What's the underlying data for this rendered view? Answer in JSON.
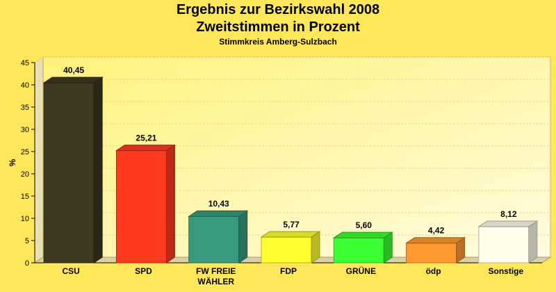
{
  "chart_data": {
    "type": "bar",
    "title": "Ergebnis zur Bezirkswahl 2008",
    "title2": "Zweitstimmen in Prozent",
    "subtitle": "Stimmkreis Amberg-Sulzbach",
    "ylabel": "%",
    "xlabel": "",
    "ylim": [
      0,
      45
    ],
    "yticks": [
      0,
      5,
      10,
      15,
      20,
      25,
      30,
      35,
      40,
      45
    ],
    "grid": true,
    "categories": [
      "CSU",
      "SPD",
      "FW FREIE WÄHLER",
      "FDP",
      "GRÜNE",
      "ödp",
      "Sonstige"
    ],
    "category_lines": [
      [
        "CSU"
      ],
      [
        "SPD"
      ],
      [
        "FW FREIE",
        "WÄHLER"
      ],
      [
        "FDP"
      ],
      [
        "GRÜNE"
      ],
      [
        "ödp"
      ],
      [
        "Sonstige"
      ]
    ],
    "values": [
      40.45,
      25.21,
      10.43,
      5.77,
      5.6,
      4.42,
      8.12
    ],
    "value_labels": [
      "40,45",
      "25,21",
      "10,43",
      "5,77",
      "5,60",
      "4,42",
      "8,12"
    ],
    "colors": [
      "#3d3820",
      "#ff3a20",
      "#3a9a80",
      "#ffff30",
      "#3aff30",
      "#ff9a30",
      "#fffdea"
    ]
  }
}
